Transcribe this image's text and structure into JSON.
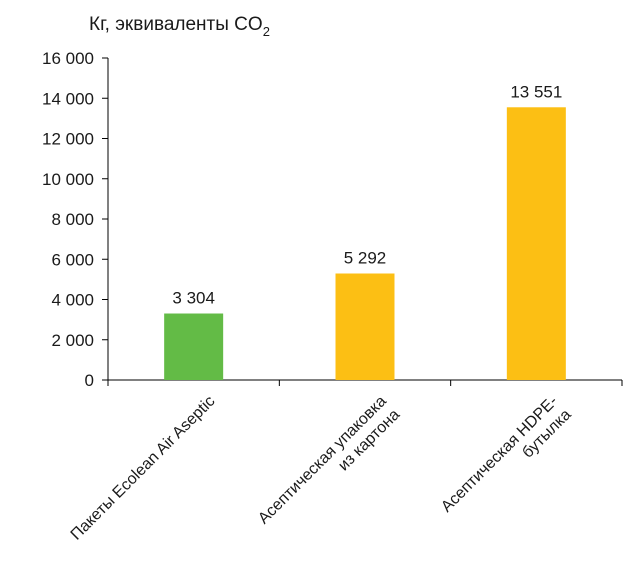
{
  "chart_data": {
    "type": "bar",
    "title": "",
    "ylabel": "Кг, эквиваленты CO",
    "ylabel_subscript": "2",
    "xlabel": "",
    "categories": [
      [
        "Пакеты Ecolean Air Aseptic"
      ],
      [
        "Асептическая упаковка",
        "из картона"
      ],
      [
        "Асептическая HDPE-",
        "бутылка"
      ]
    ],
    "values": [
      3304,
      5292,
      13551
    ],
    "data_labels": [
      "3 304",
      "5 292",
      "13 551"
    ],
    "colors": [
      "#63bb46",
      "#fcbf14",
      "#fcbf14"
    ],
    "ylim": [
      0,
      16000
    ],
    "yticks": [
      0,
      2000,
      4000,
      6000,
      8000,
      10000,
      12000,
      14000,
      16000
    ],
    "ytick_labels": [
      "0",
      "2 000",
      "4 000",
      "6 000",
      "8 000",
      "10 000",
      "12 000",
      "14 000",
      "16 000"
    ],
    "grid": false,
    "legend": "none"
  }
}
